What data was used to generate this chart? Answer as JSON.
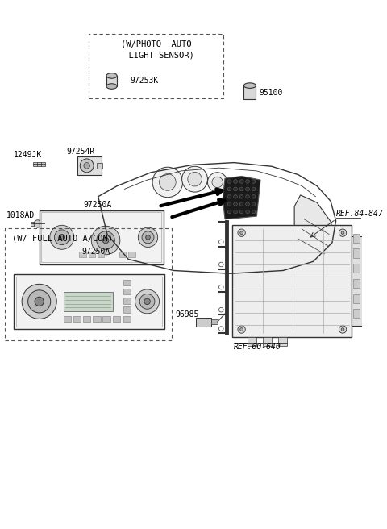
{
  "bg_color": "#ffffff",
  "line_color": "#333333",
  "text_color": "#000000",
  "labels": {
    "photo_auto_box_line1": "(W/PHOTO  AUTO",
    "photo_auto_box_line2": "  LIGHT SENSOR)",
    "photo_part": "97253K",
    "sensor_95100": "95100",
    "ref_84_847": "REF.84-847",
    "label_1249JK": "1249JK",
    "label_97254R": "97254R",
    "label_1018AD": "1018AD",
    "label_97250A_top": "97250A",
    "full_auto_box": "(W/ FULL AUTO A/CON)",
    "label_97250A_bot": "97250A",
    "label_96985": "96985",
    "ref_60_640": "REF.60-640"
  },
  "font_size_label": 7,
  "font_size_ref": 7,
  "font_size_box_title": 7.5
}
